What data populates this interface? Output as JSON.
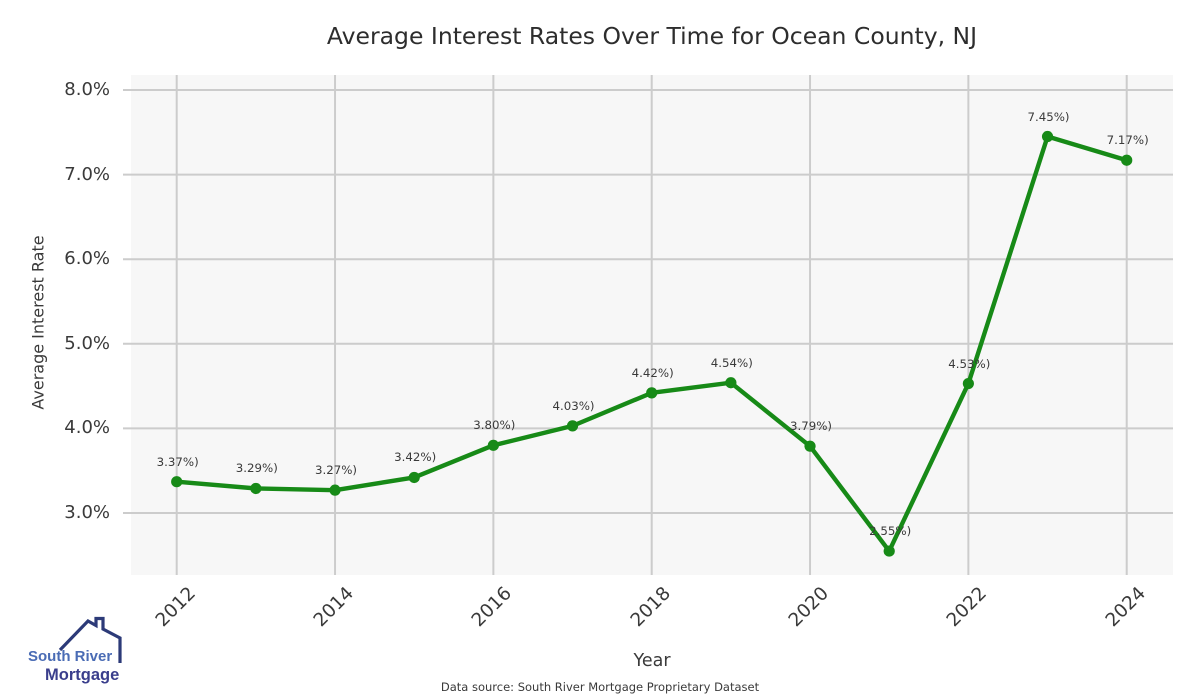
{
  "title": "Average Interest Rates Over Time for Ocean County, NJ",
  "footer": "Data source: South River Mortgage Proprietary Dataset",
  "logo": {
    "line1": "South River",
    "line2": "Mortgage"
  },
  "chart_data": {
    "type": "line",
    "x": [
      2012,
      2013,
      2014,
      2015,
      2016,
      2017,
      2018,
      2019,
      2020,
      2021,
      2022,
      2023,
      2024
    ],
    "values": [
      3.37,
      3.29,
      3.27,
      3.42,
      3.8,
      4.03,
      4.42,
      4.54,
      3.79,
      2.55,
      4.53,
      7.45,
      7.17
    ],
    "point_labels": [
      "3.37%)",
      "3.29%)",
      "3.27%)",
      "3.42%)",
      "3.80%)",
      "4.03%)",
      "4.42%)",
      "4.54%)",
      "3.79%)",
      "2.55%)",
      "4.53%)",
      "7.45%)",
      "7.17%)"
    ],
    "title": "Average Interest Rates Over Time for Ocean County, NJ",
    "xlabel": "Year",
    "ylabel": "Average Interest Rate",
    "xticks": [
      2012,
      2014,
      2016,
      2018,
      2020,
      2022,
      2024
    ],
    "yticks": [
      3.0,
      4.0,
      5.0,
      6.0,
      7.0,
      8.0
    ],
    "ytick_labels": [
      "3.0%",
      "4.0%",
      "5.0%",
      "6.0%",
      "7.0%",
      "8.0%"
    ],
    "ylim": [
      2.26,
      8.17
    ],
    "grid": true,
    "legend": false,
    "line_color": "#178a17",
    "grid_color": "#cccccc",
    "plot_bg": "#f7f7f7"
  }
}
